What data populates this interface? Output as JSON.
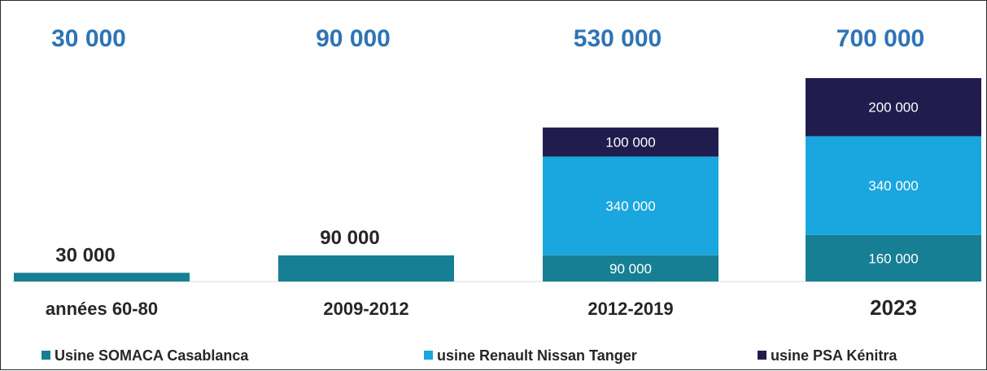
{
  "chart_data": {
    "type": "bar",
    "stacked": true,
    "categories": [
      "années 60-80",
      "2009-2012",
      "2012-2019",
      "2023"
    ],
    "totals": [
      "30 000",
      "90 000",
      "530 000",
      "700 000"
    ],
    "series": [
      {
        "name": "Usine SOMACA Casablanca",
        "color": "#167F94",
        "values": [
          30000,
          90000,
          90000,
          160000
        ],
        "labels": [
          "30 000",
          "90 000",
          "90 000",
          "160 000"
        ]
      },
      {
        "name": "usine Renault Nissan Tanger",
        "color": "#1AA6DE",
        "values": [
          0,
          0,
          340000,
          340000
        ],
        "labels": [
          "",
          "",
          "340 000",
          "340 000"
        ]
      },
      {
        "name": "usine PSA Kénitra",
        "color": "#201D4E",
        "values": [
          0,
          0,
          100000,
          200000
        ],
        "labels": [
          "",
          "",
          "100 000",
          "200 000"
        ]
      }
    ],
    "ylim": [
      0,
      700000
    ],
    "legend_position": "bottom",
    "grid": false,
    "colors": {
      "totals_text": "#2E74B5",
      "axis_label_text": "#262626",
      "axis_line": "#D9D9D9"
    }
  }
}
